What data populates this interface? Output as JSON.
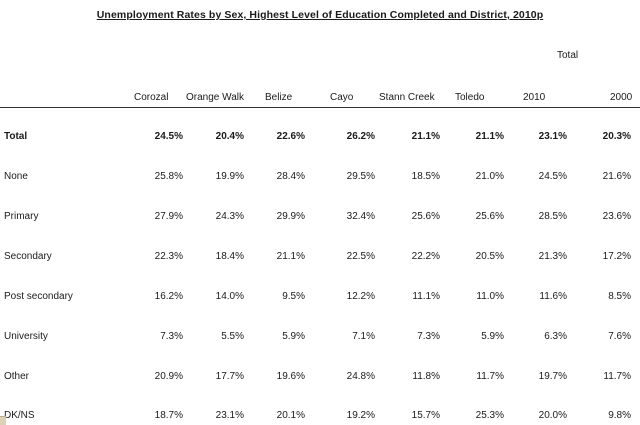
{
  "title": "Unemployment Rates by Sex, Highest Level of Education Completed and District, 2010p",
  "total_group_label": "Total",
  "columns": [
    "Corozal",
    "Orange Walk",
    "Belize",
    "Cayo",
    "Stann Creek",
    "Toledo",
    "2010",
    "2000"
  ],
  "rows": [
    {
      "label": "Total",
      "values": [
        "24.5%",
        "20.4%",
        "22.6%",
        "26.2%",
        "21.1%",
        "21.1%",
        "23.1%",
        "20.3%"
      ]
    },
    {
      "label": "None",
      "values": [
        "25.8%",
        "19.9%",
        "28.4%",
        "29.5%",
        "18.5%",
        "21.0%",
        "24.5%",
        "21.6%"
      ]
    },
    {
      "label": "Primary",
      "values": [
        "27.9%",
        "24.3%",
        "29.9%",
        "32.4%",
        "25.6%",
        "25.6%",
        "28.5%",
        "23.6%"
      ]
    },
    {
      "label": "Secondary",
      "values": [
        "22.3%",
        "18.4%",
        "21.1%",
        "22.5%",
        "22.2%",
        "20.5%",
        "21.3%",
        "17.2%"
      ]
    },
    {
      "label": "Post secondary",
      "values": [
        "16.2%",
        "14.0%",
        "9.5%",
        "12.2%",
        "11.1%",
        "11.0%",
        "11.6%",
        "8.5%"
      ]
    },
    {
      "label": "University",
      "values": [
        "7.3%",
        "5.5%",
        "5.9%",
        "7.1%",
        "7.3%",
        "5.9%",
        "6.3%",
        "7.6%"
      ]
    },
    {
      "label": "Other",
      "values": [
        "20.9%",
        "17.7%",
        "19.6%",
        "24.8%",
        "11.8%",
        "11.7%",
        "19.7%",
        "11.7%"
      ]
    },
    {
      "label": "DK/NS",
      "values": [
        "18.7%",
        "23.1%",
        "20.1%",
        "19.2%",
        "15.7%",
        "25.3%",
        "20.0%",
        "9.8%"
      ]
    }
  ]
}
